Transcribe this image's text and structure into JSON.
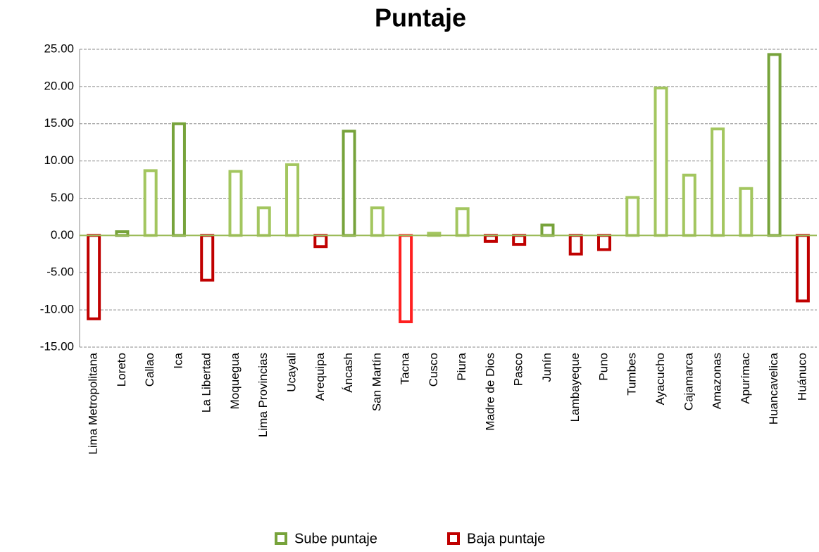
{
  "chart_data": {
    "type": "bar",
    "title": "Puntaje",
    "categories": [
      "Lima Metropolitana",
      "Loreto",
      "Callao",
      "Ica",
      "La Libertad",
      "Moquegua",
      "Lima Provincias",
      "Ucayali",
      "Arequipa",
      "Áncash",
      "San Martín",
      "Tacna",
      "Cusco",
      "Piura",
      "Madre de Dios",
      "Pasco",
      "Junín",
      "Lambayeque",
      "Puno",
      "Tumbes",
      "Ayacucho",
      "Cajamarca",
      "Amazonas",
      "Apurímac",
      "Huancavelica",
      "Huánuco"
    ],
    "series": [
      {
        "name": "Sube puntaje",
        "color": "#77a33b",
        "values": [
          null,
          0.5,
          8.7,
          15.0,
          null,
          8.6,
          3.7,
          9.5,
          null,
          14.0,
          3.7,
          null,
          0.3,
          3.6,
          null,
          null,
          1.4,
          null,
          null,
          5.1,
          19.8,
          8.1,
          14.3,
          6.3,
          24.3,
          null
        ],
        "colors": [
          null,
          "#77a33b",
          "#a3c65f",
          "#77a33b",
          null,
          "#a3c65f",
          "#a3c65f",
          "#a3c65f",
          null,
          "#77a33b",
          "#a3c65f",
          null,
          "#a3c65f",
          "#a3c65f",
          null,
          null,
          "#77a33b",
          null,
          null,
          "#a3c65f",
          "#a3c65f",
          "#a3c65f",
          "#a3c65f",
          "#a3c65f",
          "#77a33b",
          null
        ]
      },
      {
        "name": "Baja puntaje",
        "color": "#c00000",
        "values": [
          -11.2,
          null,
          null,
          null,
          -6.0,
          null,
          null,
          null,
          -1.5,
          null,
          null,
          -11.6,
          null,
          null,
          -0.8,
          -1.2,
          null,
          -2.5,
          -1.9,
          null,
          null,
          null,
          null,
          null,
          null,
          -8.8
        ],
        "colors": [
          "#c00000",
          null,
          null,
          null,
          "#c00000",
          null,
          null,
          null,
          "#c00000",
          null,
          null,
          "#ff2020",
          null,
          null,
          "#c00000",
          "#c00000",
          null,
          "#c00000",
          "#c00000",
          null,
          null,
          null,
          null,
          null,
          null,
          "#c00000"
        ]
      }
    ],
    "ylim": [
      -15,
      25
    ],
    "yticks": [
      {
        "value": -15,
        "label": "-15.00"
      },
      {
        "value": -10,
        "label": "-10.00"
      },
      {
        "value": -5,
        "label": "-5.00"
      },
      {
        "value": 0,
        "label": "0.00"
      },
      {
        "value": 5,
        "label": "5.00"
      },
      {
        "value": 10,
        "label": "10.00"
      },
      {
        "value": 15,
        "label": "15.00"
      },
      {
        "value": 20,
        "label": "20.00"
      },
      {
        "value": 25,
        "label": "25.00"
      }
    ],
    "grid": true,
    "legend": "bottom"
  }
}
